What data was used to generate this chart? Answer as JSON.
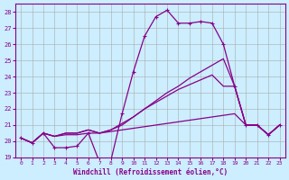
{
  "xlabel": "Windchill (Refroidissement éolien,°C)",
  "background_color": "#cceeff",
  "line_color": "#880088",
  "xlim": [
    -0.5,
    23.5
  ],
  "ylim": [
    19,
    28.5
  ],
  "yticks": [
    19,
    20,
    21,
    22,
    23,
    24,
    25,
    26,
    27,
    28
  ],
  "xticks": [
    0,
    1,
    2,
    3,
    4,
    5,
    6,
    7,
    8,
    9,
    10,
    11,
    12,
    13,
    14,
    15,
    16,
    17,
    18,
    19,
    20,
    21,
    22,
    23
  ],
  "line1_x": [
    0,
    1,
    2,
    3,
    4,
    5,
    6,
    7,
    8,
    9,
    10,
    11,
    12,
    13,
    14,
    15,
    16,
    17,
    18,
    19,
    20,
    21,
    22,
    23
  ],
  "line1_y": [
    20.2,
    19.9,
    20.5,
    19.6,
    19.6,
    19.7,
    20.5,
    18.7,
    18.8,
    21.7,
    24.3,
    26.5,
    27.7,
    28.1,
    27.3,
    27.3,
    27.4,
    27.3,
    26.0,
    23.4,
    21.0,
    21.0,
    20.4,
    21.0
  ],
  "line2_x": [
    0,
    1,
    2,
    3,
    4,
    5,
    6,
    7,
    8,
    9,
    10,
    11,
    12,
    13,
    14,
    15,
    16,
    17,
    18,
    19,
    20,
    21,
    22,
    23
  ],
  "line2_y": [
    20.2,
    19.9,
    20.5,
    20.3,
    20.5,
    20.5,
    20.7,
    20.5,
    20.7,
    21.0,
    21.5,
    22.0,
    22.4,
    22.8,
    23.2,
    23.5,
    23.8,
    24.1,
    23.4,
    23.4,
    21.0,
    21.0,
    20.4,
    21.0
  ],
  "line3_x": [
    0,
    1,
    2,
    3,
    4,
    5,
    6,
    7,
    8,
    9,
    10,
    11,
    12,
    13,
    14,
    15,
    16,
    17,
    18,
    19,
    20,
    21,
    22,
    23
  ],
  "line3_y": [
    20.2,
    19.9,
    20.5,
    20.3,
    20.5,
    20.5,
    20.7,
    20.5,
    20.7,
    21.1,
    21.5,
    22.0,
    22.5,
    23.0,
    23.4,
    23.9,
    24.3,
    24.7,
    25.1,
    23.4,
    21.0,
    21.0,
    20.4,
    21.0
  ],
  "line4_x": [
    0,
    1,
    2,
    3,
    4,
    5,
    6,
    7,
    8,
    9,
    10,
    11,
    12,
    13,
    14,
    15,
    16,
    17,
    18,
    19,
    20,
    21,
    22,
    23
  ],
  "line4_y": [
    20.2,
    19.9,
    20.5,
    20.3,
    20.4,
    20.4,
    20.5,
    20.5,
    20.6,
    20.7,
    20.8,
    20.9,
    21.0,
    21.1,
    21.2,
    21.3,
    21.4,
    21.5,
    21.6,
    21.7,
    21.0,
    21.0,
    20.4,
    21.0
  ]
}
